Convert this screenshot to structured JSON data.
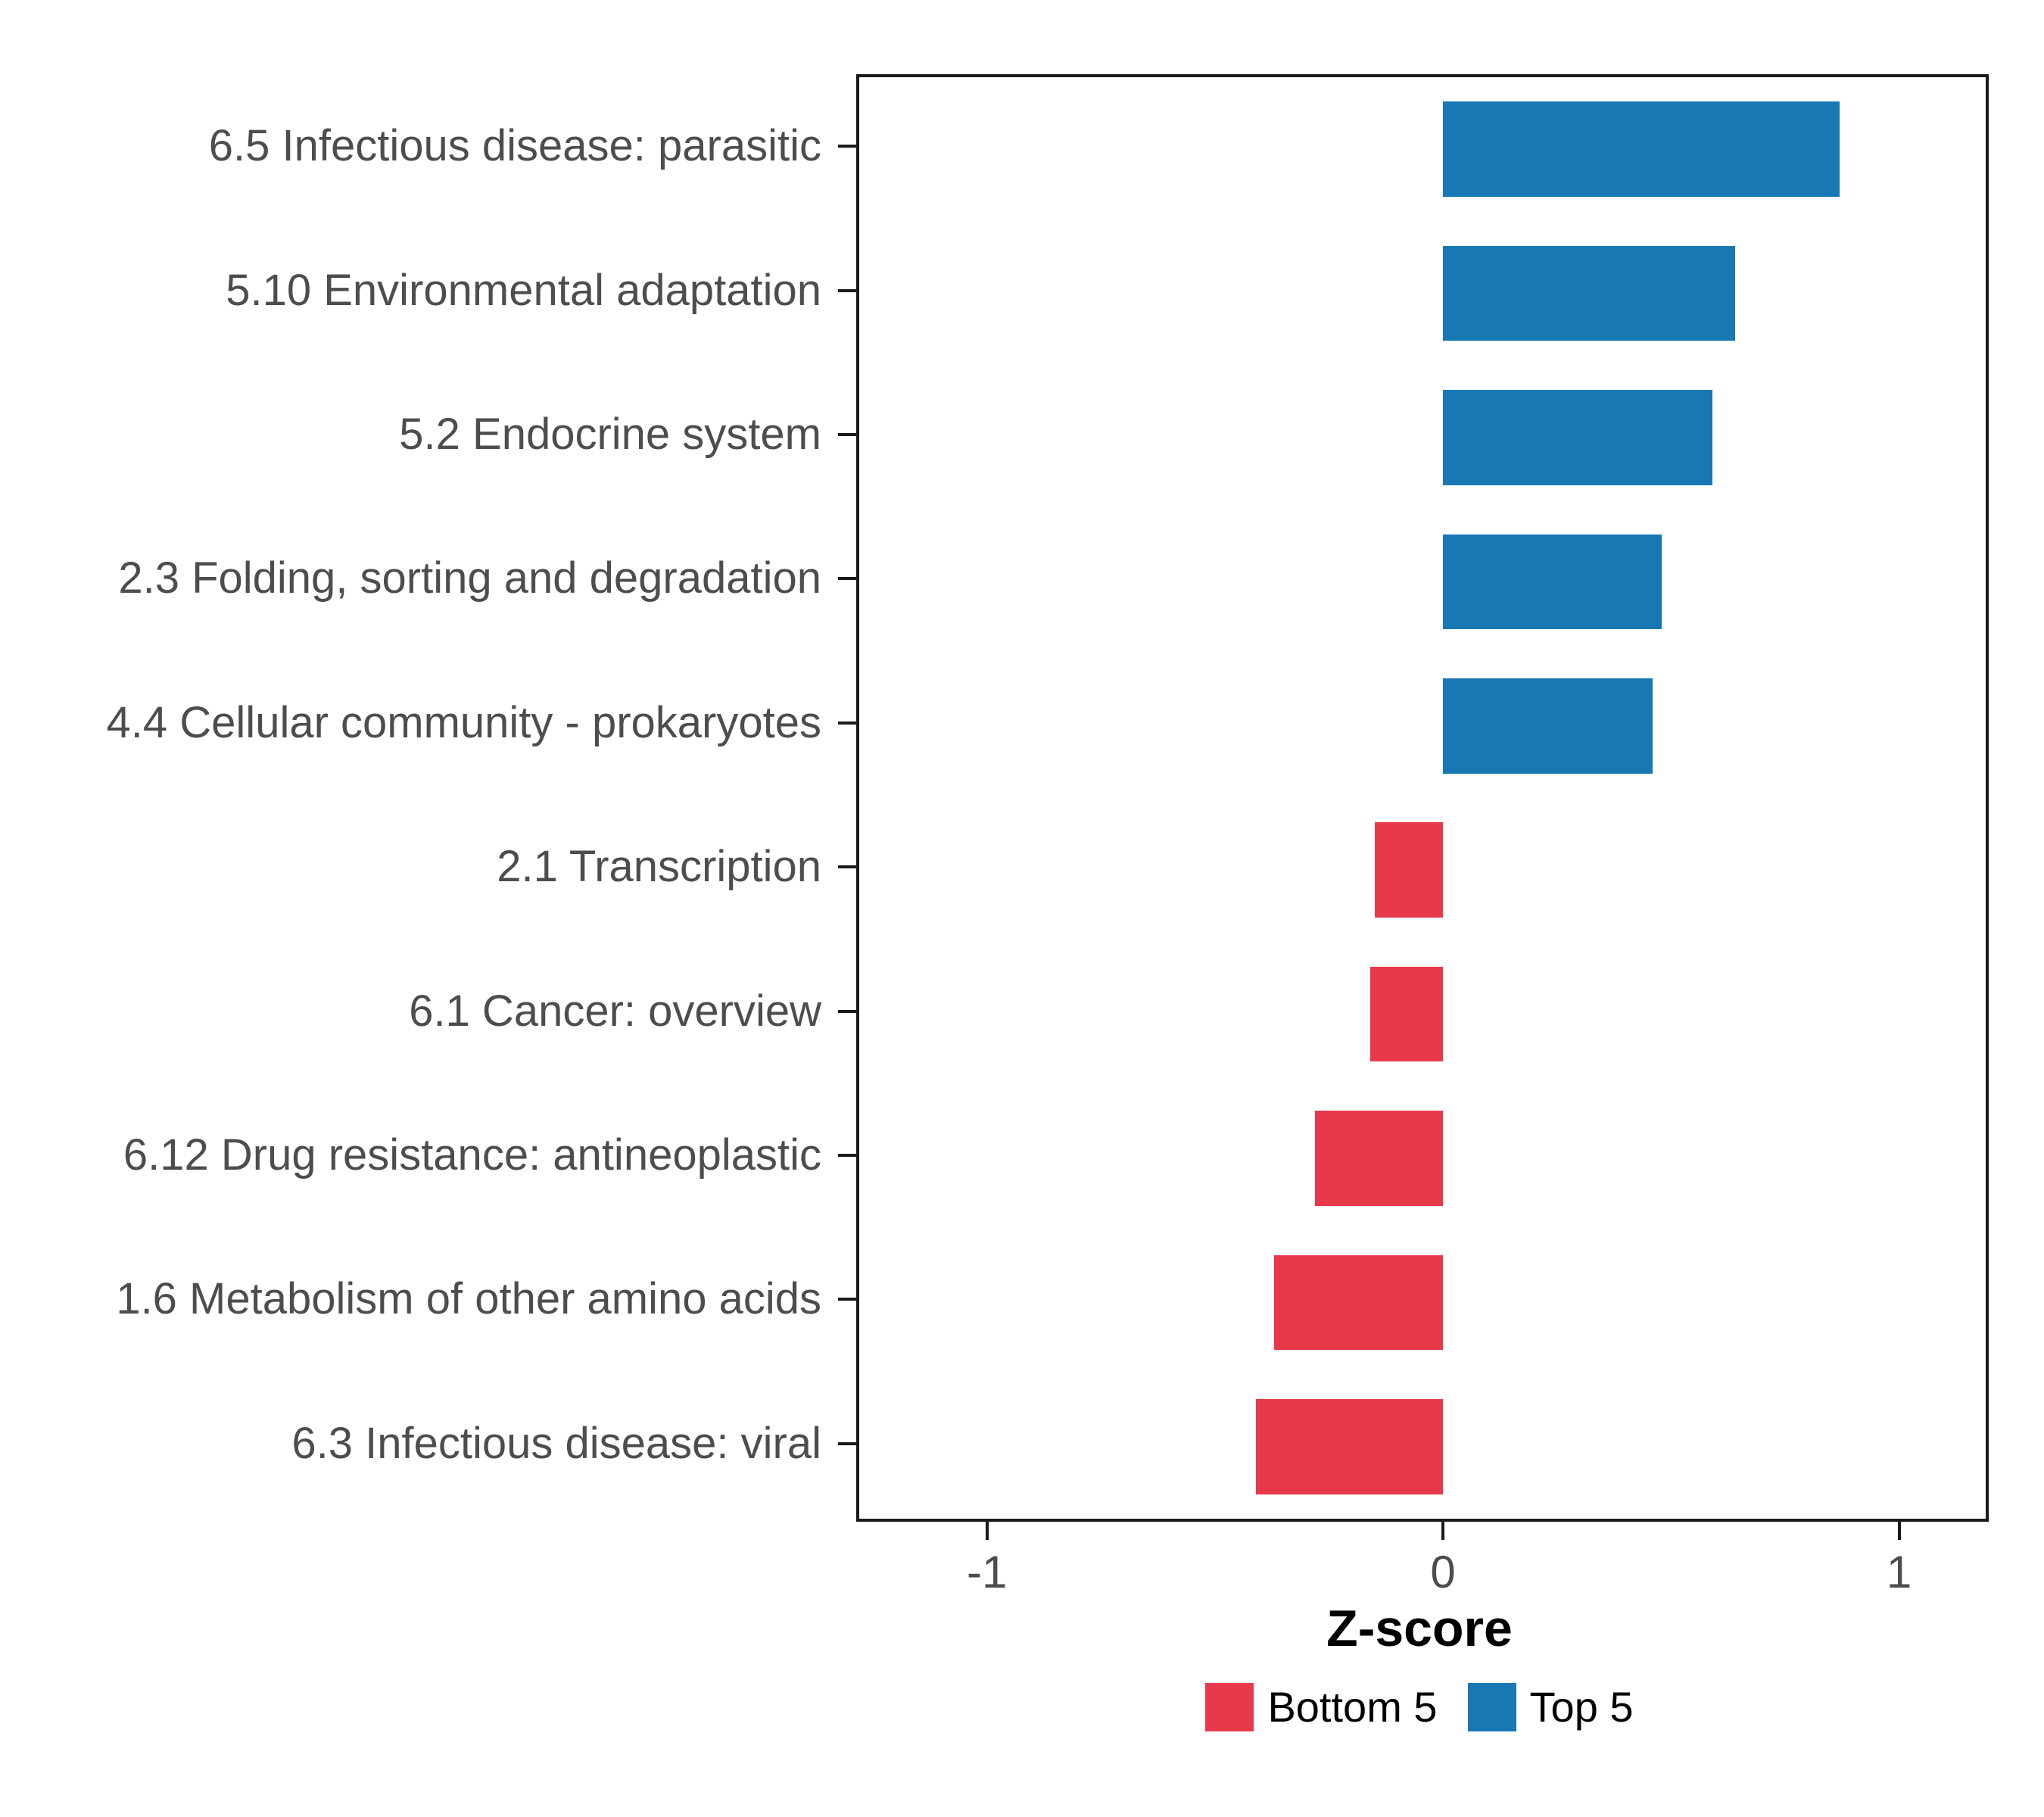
{
  "chart_data": {
    "type": "bar",
    "orientation": "horizontal",
    "title": "",
    "xlabel": "Z-score",
    "ylabel": "",
    "xlim": [
      -1.28,
      1.19
    ],
    "xticks": [
      -1,
      0,
      1
    ],
    "xtick_labels": [
      "-1",
      "0",
      "1"
    ],
    "grid": false,
    "categories": [
      "6.5 Infectious disease: parasitic",
      "5.10 Environmental adaptation",
      "5.2 Endocrine system",
      "2.3 Folding, sorting and degradation",
      "4.4 Cellular community - prokaryotes",
      "2.1 Transcription",
      "6.1 Cancer: overview",
      "6.12 Drug resistance: antineoplastic",
      "1.6 Metabolism of other amino acids",
      "6.3 Infectious disease: viral"
    ],
    "values": [
      0.87,
      0.64,
      0.59,
      0.48,
      0.46,
      -0.15,
      -0.16,
      -0.28,
      -0.37,
      -0.41
    ],
    "groups": [
      "Top 5",
      "Top 5",
      "Top 5",
      "Top 5",
      "Top 5",
      "Bottom 5",
      "Bottom 5",
      "Bottom 5",
      "Bottom 5",
      "Bottom 5"
    ],
    "colors": {
      "Top 5": "#1878B4",
      "Bottom 5": "#E8394B"
    },
    "legend": [
      {
        "label": "Bottom 5",
        "color": "#E8394B"
      },
      {
        "label": "Top 5",
        "color": "#1878B4"
      }
    ],
    "legend_position": "bottom-center",
    "panel_border_color": "#1a1a1a",
    "axis_text_color": "#4d4d4d"
  }
}
